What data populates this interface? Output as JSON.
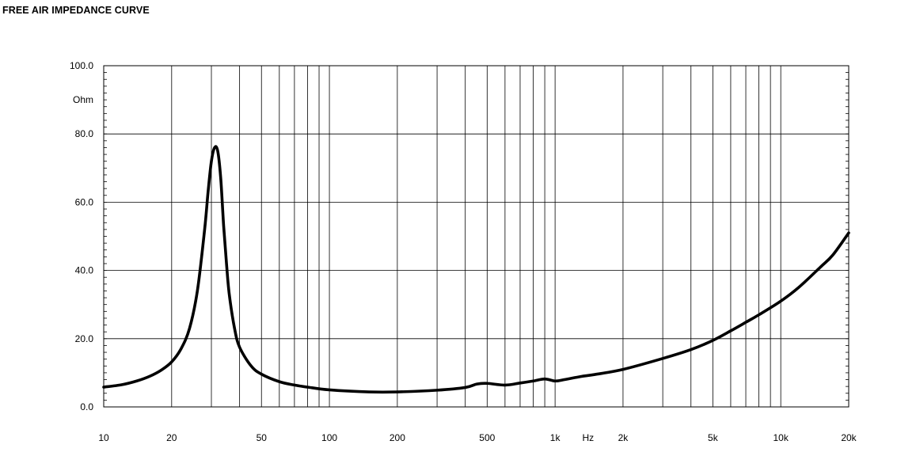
{
  "title": "FREE AIR IMPEDANCE CURVE",
  "chart_data": {
    "type": "line",
    "title": "FREE AIR IMPEDANCE CURVE",
    "x_scale": "log",
    "xlim": [
      10,
      20000
    ],
    "ylim": [
      0,
      100
    ],
    "ylabel": "Ohm",
    "xlabel": "Hz",
    "y_ticks": [
      "0.0",
      "20.0",
      "40.0",
      "60.0",
      "80.0",
      "100.0"
    ],
    "y_tick_values": [
      0,
      20,
      40,
      60,
      80,
      100
    ],
    "x_ticks": [
      {
        "value": 10,
        "label": "10"
      },
      {
        "value": 20,
        "label": "20"
      },
      {
        "value": 50,
        "label": "50"
      },
      {
        "value": 100,
        "label": "100"
      },
      {
        "value": 200,
        "label": "200"
      },
      {
        "value": 500,
        "label": "500"
      },
      {
        "value": 1000,
        "label": "1k"
      },
      {
        "value": 2000,
        "label": "2k"
      },
      {
        "value": 5000,
        "label": "5k"
      },
      {
        "value": 10000,
        "label": "10k"
      },
      {
        "value": 20000,
        "label": "20k"
      }
    ],
    "grid": true,
    "series": [
      {
        "color": "#000000",
        "x": [
          10,
          12,
          14,
          16,
          18,
          20,
          22,
          24,
          26,
          28,
          29,
          30,
          31,
          32,
          33,
          34,
          35,
          36,
          38,
          40,
          45,
          50,
          60,
          70,
          80,
          100,
          150,
          200,
          300,
          400,
          450,
          500,
          600,
          700,
          800,
          900,
          1000,
          1100,
          1300,
          1500,
          2000,
          3000,
          4000,
          5000,
          6000,
          7000,
          8000,
          10000,
          12000,
          15000,
          17000,
          20000
        ],
        "y": [
          5.8,
          6.5,
          7.6,
          9.0,
          10.8,
          13.2,
          17.0,
          23.0,
          34.0,
          52.0,
          63.0,
          72.0,
          76.0,
          75.0,
          67.0,
          53.0,
          42.0,
          33.0,
          23.0,
          17.5,
          12.0,
          9.6,
          7.4,
          6.4,
          5.8,
          5.0,
          4.4,
          4.4,
          4.9,
          5.7,
          6.7,
          6.9,
          6.4,
          7.0,
          7.6,
          8.2,
          7.6,
          8.0,
          8.9,
          9.5,
          11.0,
          14.2,
          16.8,
          19.5,
          22.3,
          24.8,
          27.0,
          31.0,
          35.0,
          41.0,
          44.5,
          51.0
        ]
      }
    ]
  }
}
